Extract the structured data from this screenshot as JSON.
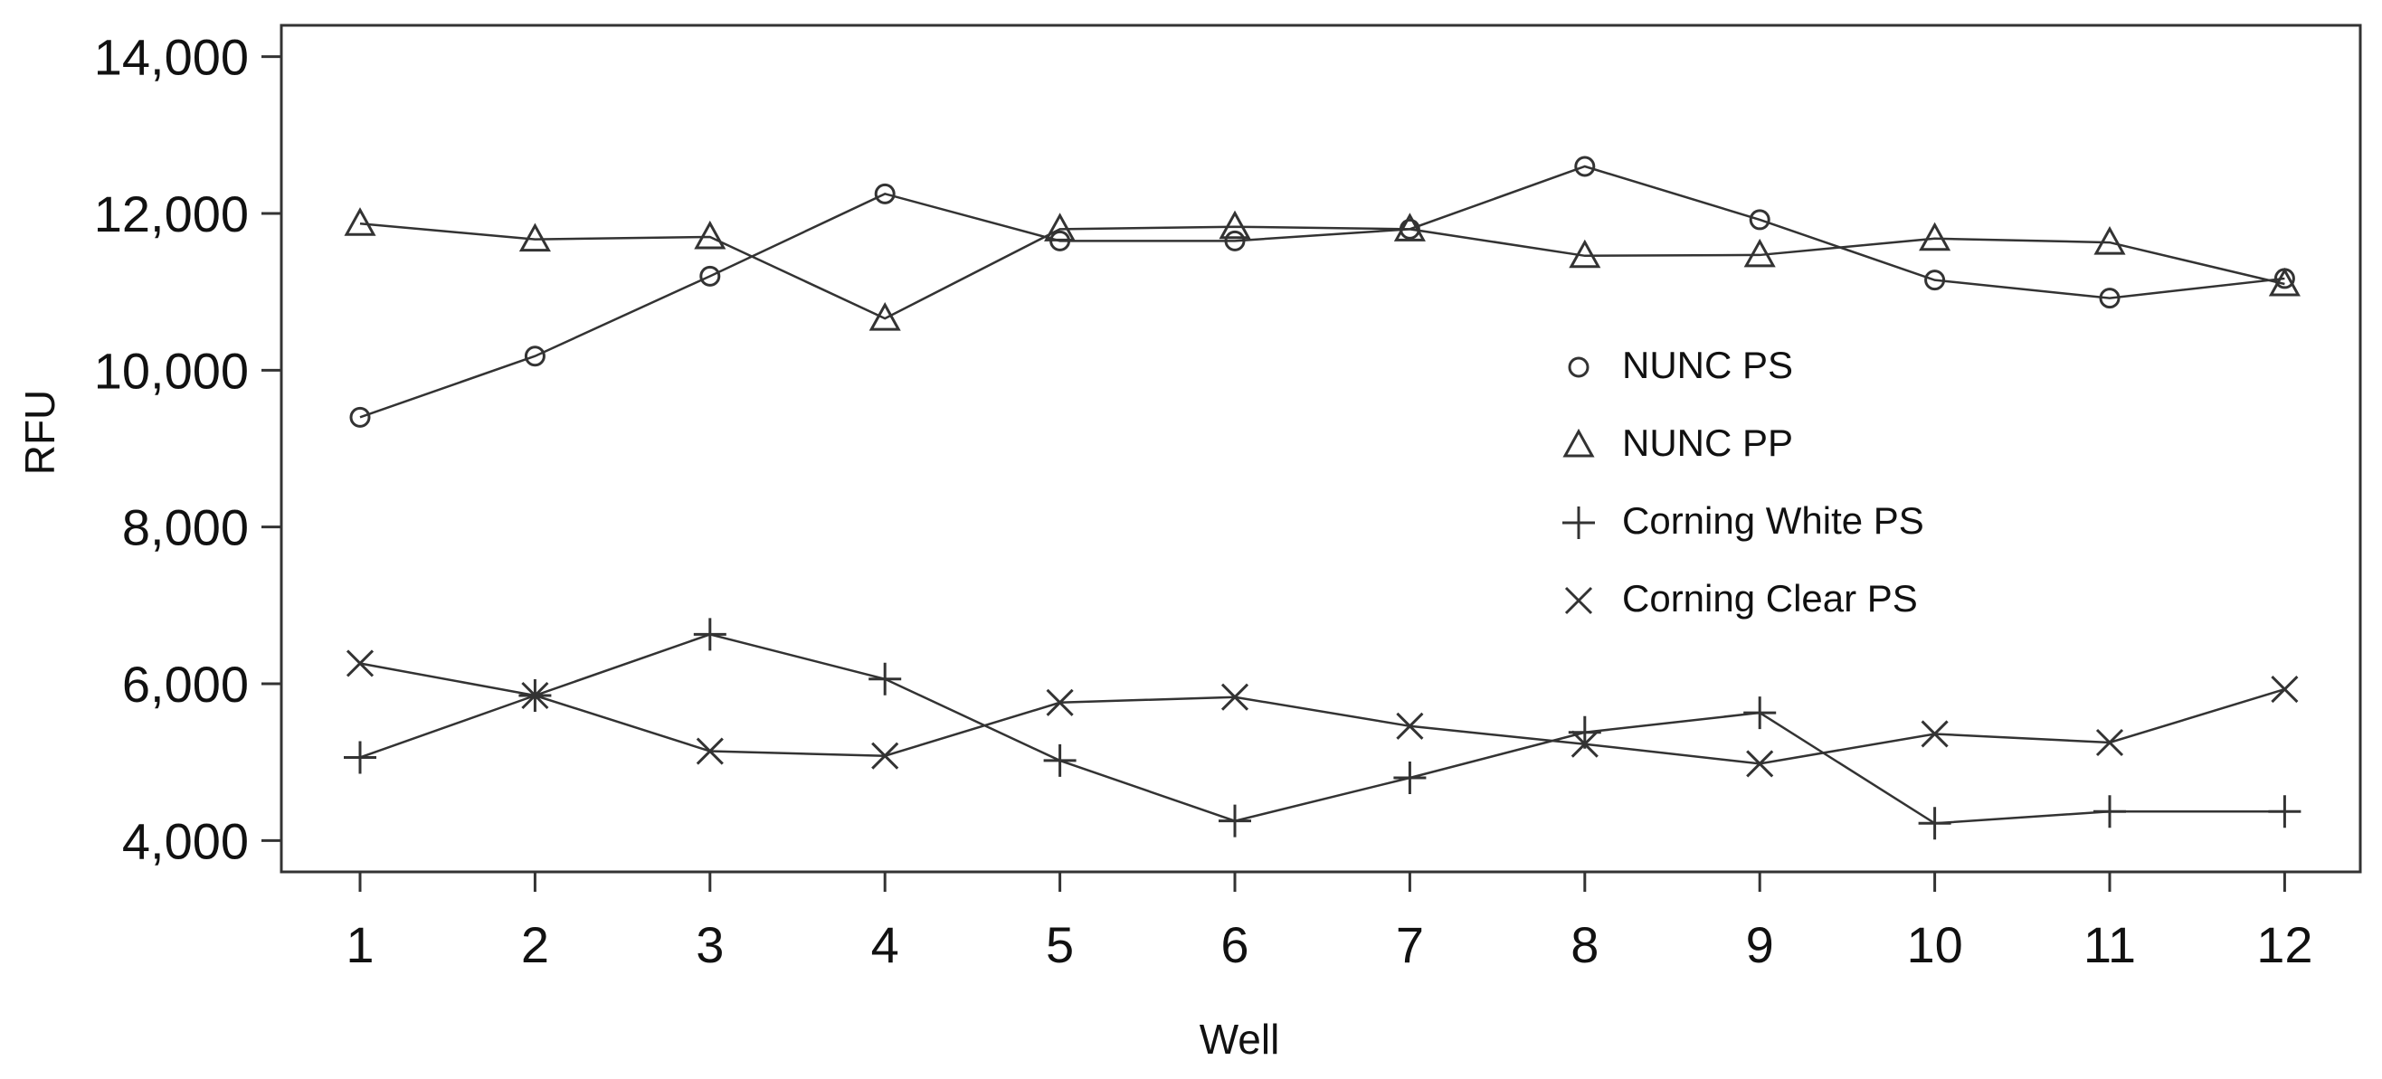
{
  "chart_data": {
    "type": "line",
    "title": "",
    "xlabel": "Well",
    "ylabel": "RFU",
    "x": [
      1,
      2,
      3,
      4,
      5,
      6,
      7,
      8,
      9,
      10,
      11,
      12
    ],
    "x_tick_labels": [
      "1",
      "2",
      "3",
      "4",
      "5",
      "6",
      "7",
      "8",
      "9",
      "10",
      "11",
      "12"
    ],
    "ylim": [
      3600,
      14400
    ],
    "y_ticks": [
      4000,
      6000,
      8000,
      10000,
      12000,
      14000
    ],
    "y_tick_labels": [
      "4,000",
      "6,000",
      "8,000",
      "10,000",
      "12,000",
      "14,000"
    ],
    "grid": false,
    "legend_position": "right-center",
    "series": [
      {
        "name": "NUNC PS",
        "marker": "circle",
        "values": [
          9400,
          10180,
          11200,
          12250,
          11650,
          11650,
          11800,
          12600,
          11920,
          11150,
          10920,
          11170
        ]
      },
      {
        "name": "NUNC PP",
        "marker": "triangle",
        "values": [
          11870,
          11670,
          11700,
          10660,
          11800,
          11830,
          11800,
          11460,
          11470,
          11680,
          11630,
          11100
        ]
      },
      {
        "name": "Corning White PS",
        "marker": "plus",
        "values": [
          5060,
          5850,
          6630,
          6060,
          5020,
          4250,
          4800,
          5380,
          5630,
          4220,
          4370,
          4370
        ]
      },
      {
        "name": "Corning Clear PS",
        "marker": "x",
        "values": [
          6260,
          5850,
          5140,
          5080,
          5760,
          5830,
          5460,
          5230,
          4980,
          5360,
          5250,
          5930
        ]
      }
    ]
  }
}
